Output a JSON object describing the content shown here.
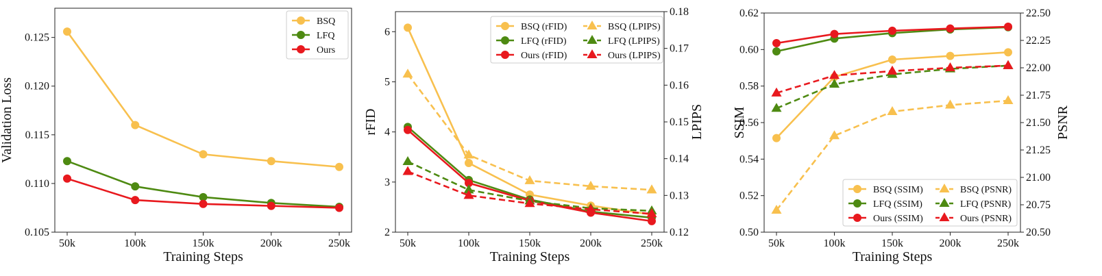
{
  "chart_data": [
    {
      "type": "line",
      "xlabel": "Training Steps",
      "ylabel": "Validation Loss",
      "categories": [
        "50k",
        "100k",
        "150k",
        "200k",
        "250k"
      ],
      "ylim": [
        0.105,
        0.128
      ],
      "yticks": [
        "0.105",
        "0.110",
        "0.115",
        "0.120",
        "0.125"
      ],
      "legend_position": "top-right",
      "series": [
        {
          "name": "BSQ",
          "axis": "left",
          "color": "#F8C04E",
          "style": "solid",
          "marker": "circle",
          "values": [
            0.1256,
            0.116,
            0.113,
            0.1123,
            0.1117
          ]
        },
        {
          "name": "LFQ",
          "axis": "left",
          "color": "#4E8A12",
          "style": "solid",
          "marker": "circle",
          "values": [
            0.1123,
            0.1097,
            0.1086,
            0.108,
            0.1076
          ]
        },
        {
          "name": "Ours",
          "axis": "left",
          "color": "#E8191E",
          "style": "solid",
          "marker": "circle",
          "values": [
            0.1105,
            0.1083,
            0.1079,
            0.1077,
            0.1075
          ]
        }
      ]
    },
    {
      "type": "line",
      "xlabel": "Training Steps",
      "ylabel": "rFID",
      "ylabel_right": "LPIPS",
      "categories": [
        "50k",
        "100k",
        "150k",
        "200k",
        "250k"
      ],
      "ylim": [
        2,
        6.4
      ],
      "yticks": [
        "2",
        "3",
        "4",
        "5",
        "6"
      ],
      "ylim_right": [
        0.12,
        0.18
      ],
      "yticks_right": [
        "0.12",
        "0.13",
        "0.14",
        "0.15",
        "0.16",
        "0.17",
        "0.18"
      ],
      "legend_position": "top-right",
      "legend_columns": 2,
      "series": [
        {
          "name": "BSQ (rFID)",
          "axis": "left",
          "color": "#F8C04E",
          "style": "solid",
          "marker": "circle",
          "values": [
            6.08,
            3.38,
            2.75,
            2.53,
            2.35
          ]
        },
        {
          "name": "LFQ (rFID)",
          "axis": "left",
          "color": "#4E8A12",
          "style": "solid",
          "marker": "circle",
          "values": [
            4.1,
            3.04,
            2.65,
            2.41,
            2.29
          ]
        },
        {
          "name": "Ours (rFID)",
          "axis": "left",
          "color": "#E8191E",
          "style": "solid",
          "marker": "circle",
          "values": [
            4.04,
            2.98,
            2.63,
            2.39,
            2.22
          ]
        },
        {
          "name": "BSQ (LPIPS)",
          "axis": "right",
          "color": "#F8C04E",
          "style": "dashed",
          "marker": "triangle",
          "values": [
            0.163,
            0.141,
            0.134,
            0.1325,
            0.1315
          ]
        },
        {
          "name": "LFQ (LPIPS)",
          "axis": "right",
          "color": "#4E8A12",
          "style": "dashed",
          "marker": "triangle",
          "values": [
            0.1392,
            0.1315,
            0.1285,
            0.1265,
            0.1258
          ]
        },
        {
          "name": "Ours (LPIPS)",
          "axis": "right",
          "color": "#E8191E",
          "style": "dashed",
          "marker": "triangle",
          "values": [
            0.1365,
            0.13,
            0.1278,
            0.1262,
            0.125
          ]
        }
      ]
    },
    {
      "type": "line",
      "xlabel": "Training Steps",
      "ylabel": "SSIM",
      "ylabel_right": "PSNR",
      "categories": [
        "50k",
        "100k",
        "150k",
        "200k",
        "250k"
      ],
      "ylim": [
        0.5,
        0.62
      ],
      "yticks": [
        "0.50",
        "0.52",
        "0.54",
        "0.56",
        "0.58",
        "0.60",
        "0.62"
      ],
      "ylim_right": [
        20.5,
        22.5
      ],
      "yticks_right": [
        "20.50",
        "20.75",
        "21.00",
        "21.25",
        "21.50",
        "21.75",
        "22.00",
        "22.25",
        "22.50"
      ],
      "legend_position": "bottom-right",
      "legend_columns": 2,
      "series": [
        {
          "name": "BSQ (SSIM)",
          "axis": "left",
          "color": "#F8C04E",
          "style": "solid",
          "marker": "circle",
          "values": [
            0.5515,
            0.585,
            0.5945,
            0.5965,
            0.5985
          ]
        },
        {
          "name": "LFQ (SSIM)",
          "axis": "left",
          "color": "#4E8A12",
          "style": "solid",
          "marker": "circle",
          "values": [
            0.599,
            0.606,
            0.609,
            0.611,
            0.6122
          ]
        },
        {
          "name": "Ours (SSIM)",
          "axis": "left",
          "color": "#E8191E",
          "style": "solid",
          "marker": "circle",
          "values": [
            0.6035,
            0.6085,
            0.6103,
            0.6115,
            0.6125
          ]
        },
        {
          "name": "BSQ (PSNR)",
          "axis": "right",
          "color": "#F8C04E",
          "style": "dashed",
          "marker": "triangle",
          "values": [
            20.7,
            21.38,
            21.6,
            21.66,
            21.7
          ]
        },
        {
          "name": "LFQ (PSNR)",
          "axis": "right",
          "color": "#4E8A12",
          "style": "dashed",
          "marker": "triangle",
          "values": [
            21.63,
            21.85,
            21.94,
            21.99,
            22.02
          ]
        },
        {
          "name": "Ours (PSNR)",
          "axis": "right",
          "color": "#E8191E",
          "style": "dashed",
          "marker": "triangle",
          "values": [
            21.77,
            21.93,
            21.97,
            22.0,
            22.02
          ]
        }
      ]
    }
  ]
}
